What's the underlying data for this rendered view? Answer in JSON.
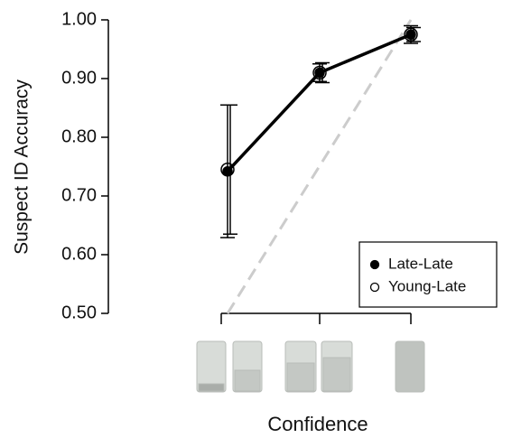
{
  "chart_data": {
    "type": "line",
    "ylabel": "Suspect ID Accuracy",
    "xlabel": "Confidence",
    "categories": [
      null,
      null,
      null
    ],
    "series": [
      {
        "name": "Late-Late",
        "color": "#000000",
        "marker": "filled",
        "values": [
          0.742,
          0.91,
          0.975
        ],
        "errors": [
          0.113,
          0.015,
          0.015
        ]
      },
      {
        "name": "Young-Late",
        "color": "#000000",
        "marker": "open",
        "values": [
          0.745,
          0.91,
          0.975
        ],
        "errors": [
          0.11,
          0.017,
          0.012
        ]
      }
    ],
    "ylim": [
      0.5,
      1.0
    ],
    "yticks": [
      {
        "value": 0.5,
        "label": "0.50"
      },
      {
        "value": 0.6,
        "label": "0.60"
      },
      {
        "value": 0.7,
        "label": "0.70"
      },
      {
        "value": 0.8,
        "label": "0.80"
      },
      {
        "value": 0.9,
        "label": "0.90"
      },
      {
        "value": 1.0,
        "label": "1.00"
      }
    ],
    "legend": "lower right"
  }
}
